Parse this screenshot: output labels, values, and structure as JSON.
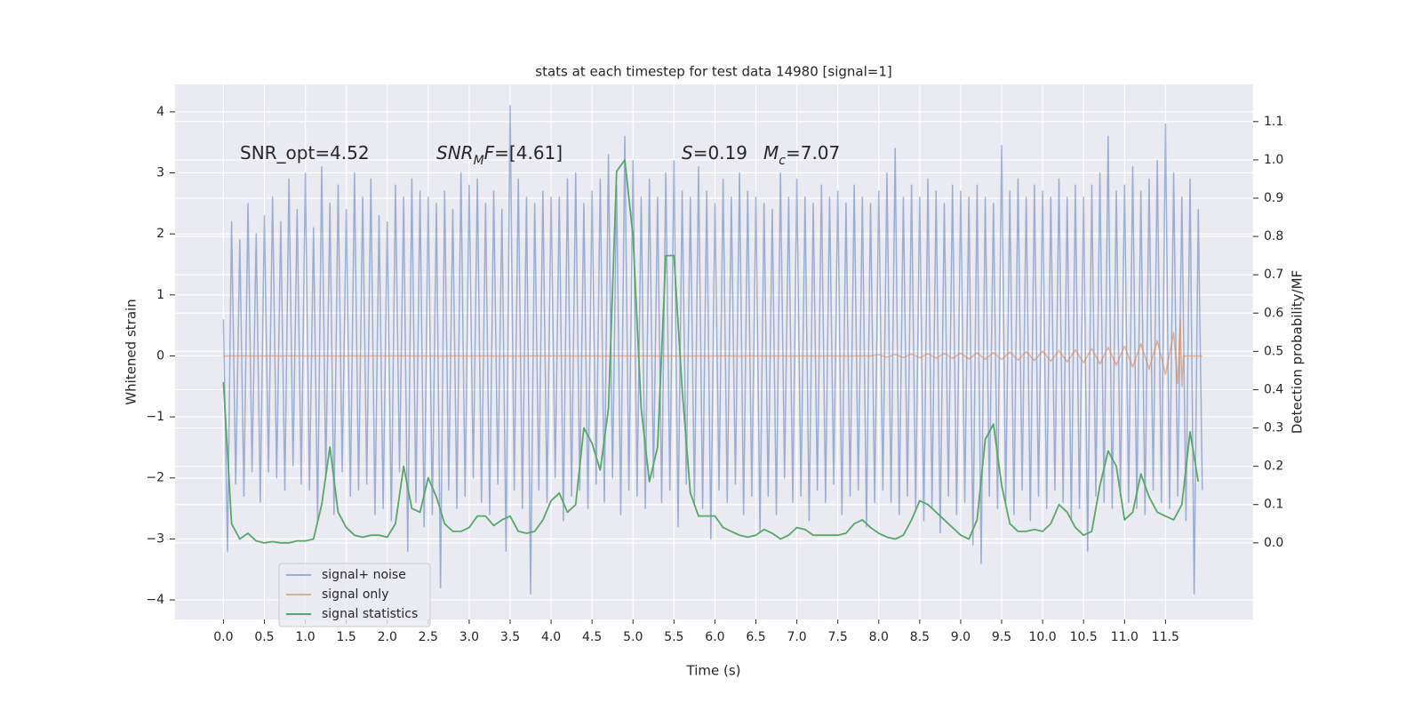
{
  "chart_data": {
    "type": "line",
    "title": "stats at each timestep for test data 14980 [signal=1]",
    "xlabel": "Time (s)",
    "ylabel": "Whitened strain",
    "y2label": "Detection probability/MF",
    "annotations": [
      {
        "parts": [
          {
            "text": "SNR_opt=4.52"
          }
        ]
      },
      {
        "parts": [
          {
            "text": "SNR",
            "italic": true
          },
          {
            "text": "M",
            "italic": true,
            "sub": true
          },
          {
            "text": "F",
            "italic": true
          },
          {
            "text": "=[4.61]"
          }
        ]
      },
      {
        "parts": [
          {
            "text": "S",
            "italic": true
          },
          {
            "text": "=0.19"
          }
        ]
      },
      {
        "parts": [
          {
            "text": "M",
            "italic": true
          },
          {
            "text": "c",
            "italic": true,
            "sub": true
          },
          {
            "text": "=7.07"
          }
        ]
      }
    ],
    "xlim": [
      -0.59,
      12.57
    ],
    "ylim": [
      -4.32,
      4.45
    ],
    "y2lim": [
      -0.2,
      1.197
    ],
    "xticks": [
      {
        "value": 0,
        "label": "0.0"
      },
      0.5,
      {
        "value": 1,
        "label": "1.0"
      },
      1.5,
      {
        "value": 2,
        "label": "2.0"
      },
      2.5,
      {
        "value": 3,
        "label": "3.0"
      },
      3.5,
      {
        "value": 4,
        "label": "4.0"
      },
      4.5,
      {
        "value": 5,
        "label": "5.0"
      },
      5.5,
      {
        "value": 6,
        "label": "6.0"
      },
      6.5,
      {
        "value": 7,
        "label": "7.0"
      },
      7.5,
      {
        "value": 8,
        "label": "8.0"
      },
      8.5,
      {
        "value": 9,
        "label": "9.0"
      },
      9.5,
      {
        "value": 10,
        "label": "10.0"
      },
      10.5,
      {
        "value": 11,
        "label": "11.0"
      },
      11.5
    ],
    "yticks": [
      {
        "value": -4,
        "label": "−4"
      },
      {
        "value": -3,
        "label": "−3"
      },
      {
        "value": -2,
        "label": "−2"
      },
      {
        "value": -1,
        "label": "−1"
      },
      0,
      1,
      2,
      3,
      4
    ],
    "y2ticks": [
      {
        "value": 0,
        "label": "0.0"
      },
      0.1,
      0.2,
      0.3,
      0.4,
      0.5,
      0.6,
      0.7,
      0.8,
      0.9,
      {
        "value": 1,
        "label": "1.0"
      },
      1.1
    ],
    "grid": true,
    "legend": "lower left",
    "series": [
      {
        "name": "signal+ noise",
        "color": "#4c72b0",
        "alpha": 0.5,
        "x": [
          0,
          0.05,
          0.1,
          0.15,
          0.2,
          0.25,
          0.3,
          0.35,
          0.4,
          0.45,
          0.5,
          0.55,
          0.6,
          0.65,
          0.7,
          0.75,
          0.8,
          0.85,
          0.9,
          0.95,
          1,
          1.05,
          1.1,
          1.15,
          1.2,
          1.25,
          1.3,
          1.35,
          1.4,
          1.45,
          1.5,
          1.55,
          1.6,
          1.65,
          1.7,
          1.75,
          1.8,
          1.85,
          1.9,
          1.95,
          2,
          2.05,
          2.1,
          2.15,
          2.2,
          2.25,
          2.3,
          2.35,
          2.4,
          2.45,
          2.5,
          2.55,
          2.6,
          2.65,
          2.7,
          2.75,
          2.8,
          2.85,
          2.9,
          2.95,
          3,
          3.05,
          3.1,
          3.15,
          3.2,
          3.25,
          3.3,
          3.35,
          3.4,
          3.45,
          3.5,
          3.55,
          3.6,
          3.65,
          3.7,
          3.75,
          3.8,
          3.85,
          3.9,
          3.95,
          4,
          4.05,
          4.1,
          4.15,
          4.2,
          4.25,
          4.3,
          4.35,
          4.4,
          4.45,
          4.5,
          4.55,
          4.6,
          4.65,
          4.7,
          4.75,
          4.8,
          4.85,
          4.9,
          4.95,
          5,
          5.05,
          5.1,
          5.15,
          5.2,
          5.25,
          5.3,
          5.35,
          5.4,
          5.45,
          5.5,
          5.55,
          5.6,
          5.65,
          5.7,
          5.75,
          5.8,
          5.85,
          5.9,
          5.95,
          6,
          6.05,
          6.1,
          6.15,
          6.2,
          6.25,
          6.3,
          6.35,
          6.4,
          6.45,
          6.5,
          6.55,
          6.6,
          6.65,
          6.7,
          6.75,
          6.8,
          6.85,
          6.9,
          6.95,
          7,
          7.05,
          7.1,
          7.15,
          7.2,
          7.25,
          7.3,
          7.35,
          7.4,
          7.45,
          7.5,
          7.55,
          7.6,
          7.65,
          7.7,
          7.75,
          7.8,
          7.85,
          7.9,
          7.95,
          8,
          8.05,
          8.1,
          8.15,
          8.2,
          8.25,
          8.3,
          8.35,
          8.4,
          8.45,
          8.5,
          8.55,
          8.6,
          8.65,
          8.7,
          8.75,
          8.8,
          8.85,
          8.9,
          8.95,
          9,
          9.05,
          9.1,
          9.15,
          9.2,
          9.25,
          9.3,
          9.35,
          9.4,
          9.45,
          9.5,
          9.55,
          9.6,
          9.65,
          9.7,
          9.75,
          9.8,
          9.85,
          9.9,
          9.95,
          10,
          10.05,
          10.1,
          10.15,
          10.2,
          10.25,
          10.3,
          10.35,
          10.4,
          10.45,
          10.5,
          10.55,
          10.6,
          10.65,
          10.7,
          10.75,
          10.8,
          10.85,
          10.9,
          10.95,
          11,
          11.05,
          11.1,
          11.15,
          11.2,
          11.25,
          11.3,
          11.35,
          11.4,
          11.45,
          11.5,
          11.55,
          11.6,
          11.65,
          11.7,
          11.75,
          11.8,
          11.85,
          11.9,
          11.95
        ],
        "values": [
          0.6,
          -3.2,
          2.2,
          -2.1,
          1.9,
          -2.3,
          2.5,
          -1.9,
          2.0,
          -2.4,
          2.3,
          -1.9,
          2.6,
          -2.0,
          2.2,
          -2.2,
          2.9,
          -1.8,
          2.4,
          -2.1,
          3.0,
          -2.2,
          2.1,
          -2.7,
          3.1,
          -2.0,
          2.5,
          -2.6,
          2.8,
          -1.9,
          2.4,
          -2.3,
          3.0,
          -2.2,
          2.6,
          -2.1,
          2.9,
          -2.6,
          2.3,
          -2.5,
          2.2,
          -2.7,
          2.8,
          -1.9,
          2.6,
          -3.2,
          2.9,
          -2.4,
          2.7,
          -2.8,
          2.6,
          -2.6,
          2.5,
          -3.8,
          2.7,
          -2.2,
          2.4,
          -2.5,
          3.0,
          -2.3,
          2.8,
          -2.0,
          2.9,
          -2.4,
          2.5,
          -2.6,
          2.7,
          -2.1,
          2.4,
          -3.2,
          4.1,
          -2.2,
          2.9,
          -2.5,
          2.6,
          -3.9,
          2.5,
          -2.2,
          2.7,
          -2.4,
          2.6,
          -2.0,
          2.6,
          -2.7,
          2.9,
          -2.3,
          3.0,
          -2.2,
          2.5,
          -2.5,
          2.7,
          -2.1,
          2.9,
          -2.4,
          3.3,
          -2.0,
          2.8,
          -2.6,
          3.6,
          -2.2,
          3.2,
          -2.3,
          2.6,
          -2.5,
          2.9,
          -2.0,
          2.6,
          -2.4,
          3.0,
          -2.2,
          3.2,
          -2.8,
          2.7,
          -2.1,
          2.6,
          -2.4,
          3.1,
          -2.5,
          2.7,
          -3.0,
          2.5,
          -2.2,
          2.9,
          -2.4,
          2.6,
          -2.1,
          3.0,
          -2.6,
          2.7,
          -2.3,
          2.6,
          -2.9,
          2.5,
          -2.3,
          2.4,
          -2.6,
          3.0,
          -2.0,
          2.6,
          -2.4,
          2.9,
          -2.3,
          2.6,
          -2.7,
          2.5,
          -2.2,
          2.8,
          -2.4,
          2.6,
          -2.1,
          2.7,
          -2.6,
          2.5,
          -2.3,
          2.8,
          -2.2,
          2.6,
          -2.8,
          2.5,
          -2.4,
          2.7,
          -2.2,
          3.0,
          -2.4,
          3.4,
          -2.6,
          2.6,
          -2.3,
          2.8,
          -2.5,
          2.6,
          -2.7,
          2.9,
          -2.5,
          2.7,
          -2.9,
          2.5,
          -2.3,
          2.8,
          -2.6,
          2.7,
          -2.4,
          2.6,
          -3.1,
          2.8,
          -3.4,
          2.6,
          -2.3,
          2.5,
          -2.5,
          3.45,
          -2.4,
          2.7,
          -2.6,
          2.9,
          -2.2,
          2.6,
          -2.7,
          2.8,
          -2.3,
          2.7,
          -2.5,
          2.6,
          -2.2,
          2.9,
          -2.4,
          2.6,
          -2.7,
          2.8,
          -2.5,
          2.6,
          -3.2,
          2.8,
          -2.3,
          3.0,
          -2.4,
          3.6,
          -2.5,
          2.7,
          -2.3,
          2.8,
          -2.4,
          3.1,
          -2.5,
          2.7,
          -2.6,
          2.9,
          -2.2,
          3.2,
          -2.4,
          3.8,
          -2.5,
          3.0,
          -2.3,
          2.6,
          -2.7,
          2.9,
          -3.9,
          2.4,
          -2.2
        ]
      },
      {
        "name": "signal only",
        "color": "#dd8452",
        "alpha": 0.6,
        "x": [
          0,
          7.9,
          8,
          8.1,
          8.2,
          8.3,
          8.4,
          8.5,
          8.6,
          8.7,
          8.8,
          8.9,
          9,
          9.1,
          9.2,
          9.3,
          9.4,
          9.5,
          9.6,
          9.7,
          9.8,
          9.9,
          10,
          10.1,
          10.2,
          10.3,
          10.4,
          10.5,
          10.6,
          10.7,
          10.8,
          10.9,
          11,
          11.1,
          11.2,
          11.3,
          11.4,
          11.5,
          11.6,
          11.65,
          11.68,
          11.7,
          11.72,
          11.95
        ],
        "values": [
          0,
          0,
          0.02,
          -0.02,
          0.025,
          -0.025,
          0.03,
          -0.03,
          0.035,
          -0.035,
          0.04,
          -0.04,
          0.045,
          -0.05,
          0.05,
          -0.055,
          0.055,
          -0.06,
          0.065,
          -0.07,
          0.07,
          -0.075,
          0.08,
          -0.085,
          0.09,
          -0.1,
          0.1,
          -0.11,
          0.12,
          -0.13,
          0.14,
          -0.15,
          0.16,
          -0.18,
          0.2,
          -0.22,
          0.25,
          -0.3,
          0.38,
          -0.45,
          0.6,
          -0.5,
          0,
          0
        ]
      },
      {
        "name": "signal statistics",
        "color": "#55a868",
        "axis": "y2",
        "x": [
          0,
          0.1,
          0.2,
          0.3,
          0.4,
          0.5,
          0.6,
          0.7,
          0.8,
          0.9,
          1,
          1.1,
          1.2,
          1.3,
          1.4,
          1.5,
          1.6,
          1.7,
          1.8,
          1.9,
          2,
          2.1,
          2.2,
          2.3,
          2.4,
          2.5,
          2.6,
          2.7,
          2.8,
          2.9,
          3,
          3.1,
          3.2,
          3.3,
          3.4,
          3.5,
          3.6,
          3.7,
          3.8,
          3.9,
          4,
          4.1,
          4.2,
          4.3,
          4.4,
          4.5,
          4.6,
          4.7,
          4.8,
          4.9,
          5,
          5.1,
          5.2,
          5.3,
          5.4,
          5.5,
          5.6,
          5.7,
          5.8,
          5.9,
          6,
          6.1,
          6.2,
          6.3,
          6.4,
          6.5,
          6.6,
          6.7,
          6.8,
          6.9,
          7,
          7.1,
          7.2,
          7.3,
          7.4,
          7.5,
          7.6,
          7.7,
          7.8,
          7.9,
          8,
          8.1,
          8.2,
          8.3,
          8.4,
          8.5,
          8.6,
          8.7,
          8.8,
          8.9,
          9,
          9.1,
          9.2,
          9.3,
          9.4,
          9.5,
          9.6,
          9.7,
          9.8,
          9.9,
          10,
          10.1,
          10.2,
          10.3,
          10.4,
          10.5,
          10.6,
          10.7,
          10.8,
          10.9,
          11,
          11.1,
          11.2,
          11.3,
          11.4,
          11.5,
          11.6,
          11.7,
          11.8,
          11.9
        ],
        "values": [
          0.42,
          0.05,
          0.01,
          0.025,
          0.005,
          0,
          0.003,
          0,
          0,
          0.005,
          0.005,
          0.01,
          0.1,
          0.25,
          0.08,
          0.04,
          0.02,
          0.015,
          0.02,
          0.02,
          0.015,
          0.05,
          0.2,
          0.09,
          0.08,
          0.17,
          0.12,
          0.05,
          0.03,
          0.03,
          0.04,
          0.07,
          0.07,
          0.045,
          0.06,
          0.07,
          0.03,
          0.025,
          0.03,
          0.06,
          0.11,
          0.13,
          0.08,
          0.1,
          0.3,
          0.26,
          0.19,
          0.35,
          0.97,
          1.0,
          0.8,
          0.35,
          0.16,
          0.25,
          0.75,
          0.75,
          0.4,
          0.13,
          0.07,
          0.07,
          0.07,
          0.04,
          0.03,
          0.02,
          0.015,
          0.02,
          0.035,
          0.025,
          0.01,
          0.02,
          0.04,
          0.035,
          0.02,
          0.02,
          0.02,
          0.02,
          0.025,
          0.05,
          0.06,
          0.04,
          0.025,
          0.015,
          0.01,
          0.02,
          0.06,
          0.11,
          0.1,
          0.08,
          0.06,
          0.04,
          0.02,
          0.01,
          0.06,
          0.27,
          0.31,
          0.15,
          0.05,
          0.03,
          0.03,
          0.035,
          0.03,
          0.05,
          0.1,
          0.08,
          0.04,
          0.02,
          0.03,
          0.15,
          0.24,
          0.2,
          0.06,
          0.08,
          0.18,
          0.12,
          0.08,
          0.07,
          0.06,
          0.1,
          0.29,
          0.16
        ]
      }
    ]
  }
}
